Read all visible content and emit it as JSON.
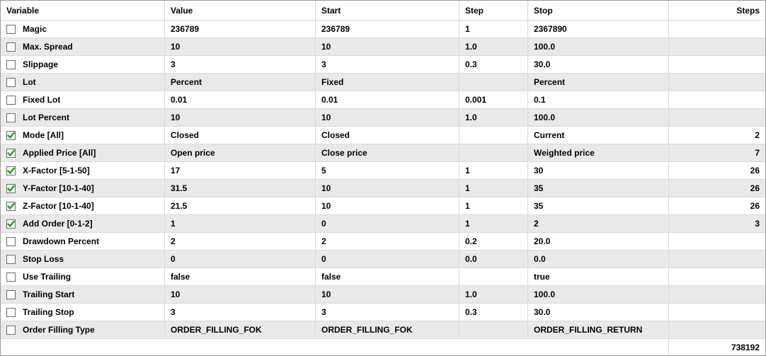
{
  "table": {
    "columns": [
      {
        "label": "Variable"
      },
      {
        "label": "Value"
      },
      {
        "label": "Start"
      },
      {
        "label": "Step"
      },
      {
        "label": "Stop"
      },
      {
        "label": "Steps"
      }
    ],
    "rows": [
      {
        "checked": false,
        "variable": "Magic",
        "value": "236789",
        "start": "236789",
        "step": "1",
        "stop": "2367890",
        "steps": ""
      },
      {
        "checked": false,
        "variable": "Max. Spread",
        "value": "10",
        "start": "10",
        "step": "1.0",
        "stop": "100.0",
        "steps": ""
      },
      {
        "checked": false,
        "variable": "Slippage",
        "value": "3",
        "start": "3",
        "step": "0.3",
        "stop": "30.0",
        "steps": ""
      },
      {
        "checked": false,
        "variable": "Lot",
        "value": "Percent",
        "start": "Fixed",
        "step": "",
        "stop": "Percent",
        "steps": ""
      },
      {
        "checked": false,
        "variable": "Fixed Lot",
        "value": "0.01",
        "start": "0.01",
        "step": "0.001",
        "stop": "0.1",
        "steps": ""
      },
      {
        "checked": false,
        "variable": "Lot Percent",
        "value": "10",
        "start": "10",
        "step": "1.0",
        "stop": "100.0",
        "steps": ""
      },
      {
        "checked": true,
        "variable": "Mode [All]",
        "value": "Closed",
        "start": "Closed",
        "step": "",
        "stop": "Current",
        "steps": "2"
      },
      {
        "checked": true,
        "variable": "Applied Price [All]",
        "value": "Open price",
        "start": "Close price",
        "step": "",
        "stop": "Weighted price",
        "steps": "7"
      },
      {
        "checked": true,
        "variable": "X-Factor [5-1-50]",
        "value": "17",
        "start": "5",
        "step": "1",
        "stop": "30",
        "steps": "26"
      },
      {
        "checked": true,
        "variable": "Y-Factor [10-1-40]",
        "value": "31.5",
        "start": "10",
        "step": "1",
        "stop": "35",
        "steps": "26"
      },
      {
        "checked": true,
        "variable": "Z-Factor [10-1-40]",
        "value": "21.5",
        "start": "10",
        "step": "1",
        "stop": "35",
        "steps": "26"
      },
      {
        "checked": true,
        "variable": "Add Order [0-1-2]",
        "value": "1",
        "start": "0",
        "step": "1",
        "stop": "2",
        "steps": "3"
      },
      {
        "checked": false,
        "variable": "Drawdown Percent",
        "value": "2",
        "start": "2",
        "step": "0.2",
        "stop": "20.0",
        "steps": ""
      },
      {
        "checked": false,
        "variable": "Stop Loss",
        "value": "0",
        "start": "0",
        "step": "0.0",
        "stop": "0.0",
        "steps": ""
      },
      {
        "checked": false,
        "variable": "Use Trailing",
        "value": "false",
        "start": "false",
        "step": "",
        "stop": "true",
        "steps": ""
      },
      {
        "checked": false,
        "variable": "Trailing Start",
        "value": "10",
        "start": "10",
        "step": "1.0",
        "stop": "100.0",
        "steps": ""
      },
      {
        "checked": false,
        "variable": "Trailing Stop",
        "value": "3",
        "start": "3",
        "step": "0.3",
        "stop": "30.0",
        "steps": ""
      },
      {
        "checked": false,
        "variable": "Order Filling Type",
        "value": "ORDER_FILLING_FOK",
        "start": "ORDER_FILLING_FOK",
        "step": "",
        "stop": "ORDER_FILLING_RETURN",
        "steps": ""
      }
    ],
    "footer": {
      "total_steps": "738192"
    }
  },
  "colors": {
    "row_alt": "#e9e9e9",
    "grid_line": "#d9d9d9",
    "check_green": "#17a317",
    "outer_border": "#9a9a9a"
  }
}
